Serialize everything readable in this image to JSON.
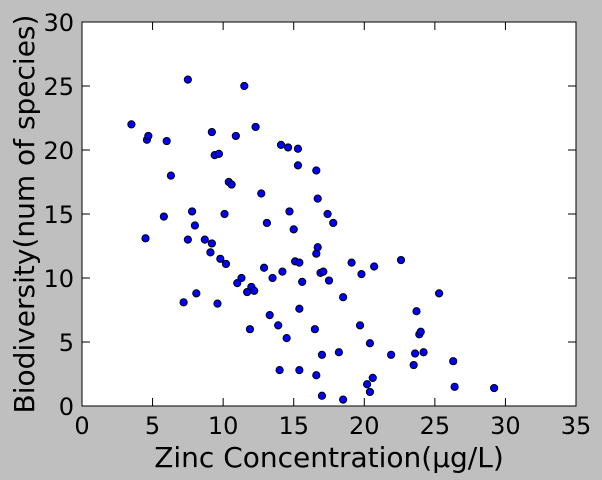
{
  "chart_data": {
    "type": "scatter",
    "title": "",
    "xlabel": "Zinc Concentration(μg/L)",
    "ylabel": "Biodiversity(num of species)",
    "xlim": [
      0,
      35
    ],
    "ylim": [
      0,
      30
    ],
    "xticks": [
      0,
      5,
      10,
      15,
      20,
      25,
      30,
      35
    ],
    "yticks": [
      0,
      5,
      10,
      15,
      20,
      25,
      30
    ],
    "grid": false,
    "legend": "none",
    "marker_color": "#0000ff",
    "marker_edge": "#000000",
    "series": [
      {
        "points": [
          [
            3.5,
            22.0
          ],
          [
            4.6,
            20.8
          ],
          [
            4.7,
            21.1
          ],
          [
            4.5,
            13.1
          ],
          [
            5.8,
            14.8
          ],
          [
            6.0,
            20.7
          ],
          [
            6.3,
            18.0
          ],
          [
            7.2,
            8.1
          ],
          [
            7.5,
            13.0
          ],
          [
            7.8,
            15.2
          ],
          [
            8.0,
            14.1
          ],
          [
            8.1,
            8.8
          ],
          [
            7.5,
            25.5
          ],
          [
            8.7,
            13.0
          ],
          [
            9.1,
            12.0
          ],
          [
            9.2,
            21.4
          ],
          [
            9.2,
            12.7
          ],
          [
            9.4,
            19.6
          ],
          [
            9.6,
            8.0
          ],
          [
            9.7,
            19.7
          ],
          [
            9.8,
            11.5
          ],
          [
            10.1,
            15.0
          ],
          [
            10.2,
            11.1
          ],
          [
            10.4,
            17.5
          ],
          [
            10.6,
            17.3
          ],
          [
            10.9,
            21.1
          ],
          [
            11.0,
            9.6
          ],
          [
            11.3,
            10.0
          ],
          [
            11.5,
            25.0
          ],
          [
            11.7,
            8.9
          ],
          [
            11.9,
            6.0
          ],
          [
            12.0,
            9.3
          ],
          [
            12.2,
            9.0
          ],
          [
            12.3,
            21.8
          ],
          [
            12.7,
            16.6
          ],
          [
            12.9,
            10.8
          ],
          [
            13.1,
            14.3
          ],
          [
            13.3,
            7.1
          ],
          [
            13.5,
            10.0
          ],
          [
            13.9,
            6.3
          ],
          [
            14.0,
            2.8
          ],
          [
            14.1,
            20.4
          ],
          [
            14.2,
            10.5
          ],
          [
            14.5,
            5.3
          ],
          [
            14.6,
            20.2
          ],
          [
            14.7,
            15.2
          ],
          [
            15.0,
            13.8
          ],
          [
            15.1,
            11.3
          ],
          [
            15.3,
            18.8
          ],
          [
            15.3,
            20.1
          ],
          [
            15.4,
            2.8
          ],
          [
            15.4,
            11.2
          ],
          [
            15.4,
            7.6
          ],
          [
            15.6,
            9.7
          ],
          [
            16.5,
            6.0
          ],
          [
            16.6,
            2.4
          ],
          [
            16.6,
            11.9
          ],
          [
            16.6,
            18.4
          ],
          [
            16.7,
            12.4
          ],
          [
            16.7,
            16.2
          ],
          [
            16.9,
            10.4
          ],
          [
            17.0,
            0.8
          ],
          [
            17.0,
            4.0
          ],
          [
            17.1,
            10.5
          ],
          [
            17.4,
            15.0
          ],
          [
            17.5,
            9.8
          ],
          [
            17.8,
            14.3
          ],
          [
            18.2,
            4.2
          ],
          [
            18.5,
            8.5
          ],
          [
            18.5,
            0.5
          ],
          [
            19.1,
            11.2
          ],
          [
            19.7,
            6.3
          ],
          [
            19.8,
            10.3
          ],
          [
            20.2,
            1.7
          ],
          [
            20.4,
            1.1
          ],
          [
            20.4,
            4.9
          ],
          [
            20.6,
            2.2
          ],
          [
            20.7,
            10.9
          ],
          [
            21.9,
            4.0
          ],
          [
            22.6,
            11.4
          ],
          [
            23.5,
            3.2
          ],
          [
            23.6,
            4.1
          ],
          [
            23.7,
            7.4
          ],
          [
            23.9,
            5.6
          ],
          [
            24.0,
            5.8
          ],
          [
            24.2,
            4.2
          ],
          [
            25.3,
            8.8
          ],
          [
            26.3,
            3.5
          ],
          [
            26.4,
            1.5
          ],
          [
            29.2,
            1.4
          ]
        ]
      }
    ]
  }
}
